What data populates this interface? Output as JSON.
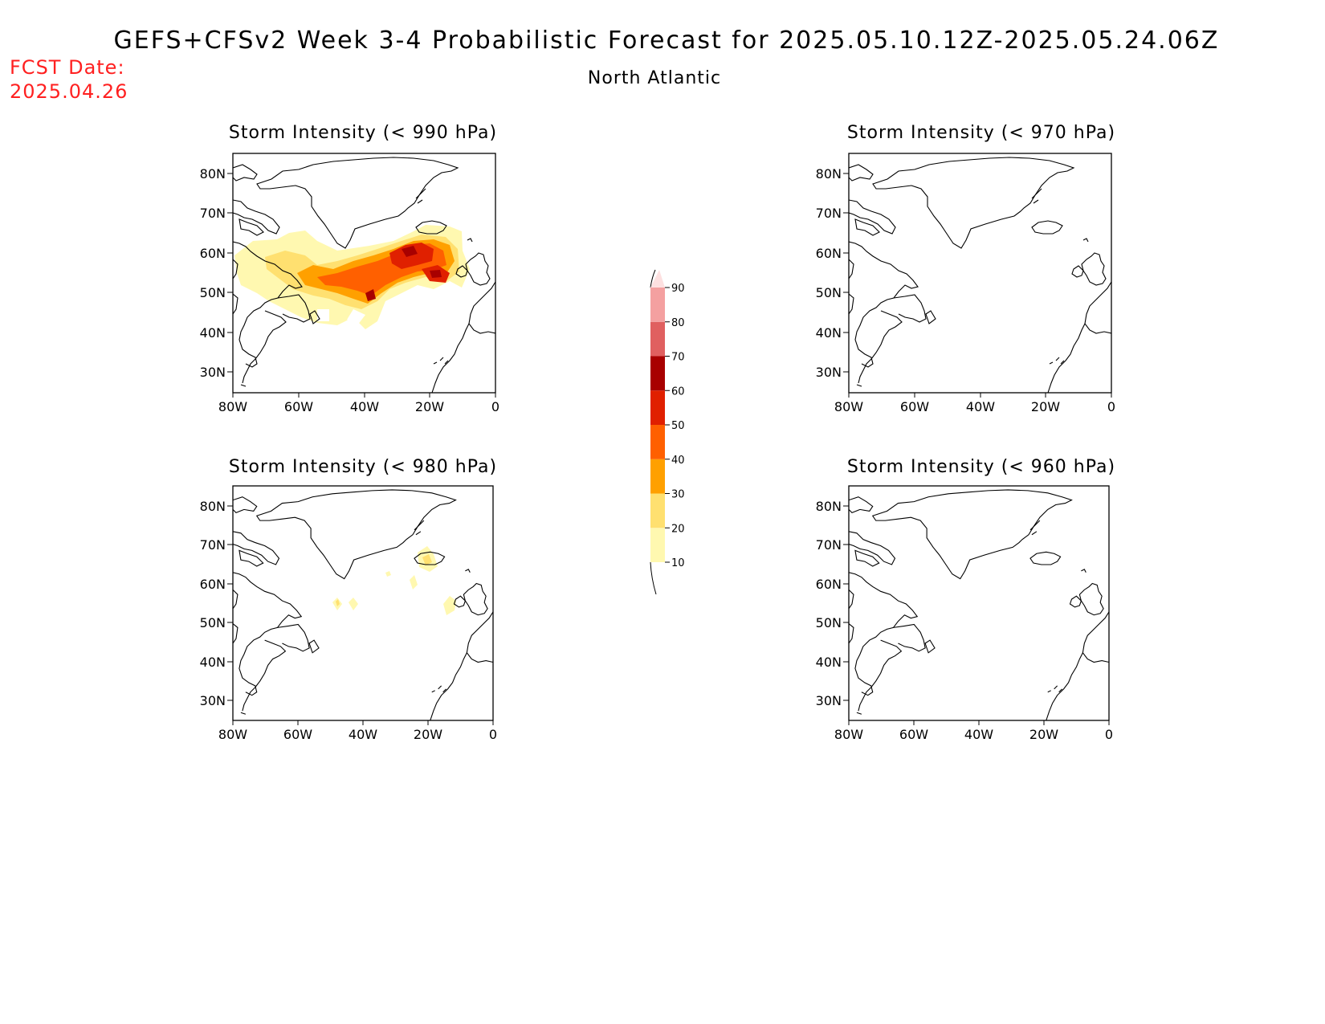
{
  "title": "GEFS+CFSv2 Week 3-4 Probabilistic Forecast for 2025.05.10.12Z-2025.05.24.06Z",
  "region": "North Atlantic",
  "fcst_date_label": "FCST Date:",
  "fcst_date": "2025.04.26",
  "colors": {
    "fcst_text": "#ff2020"
  },
  "panels": [
    {
      "title": "Storm Intensity (< 990 hPa)",
      "threshold": "990"
    },
    {
      "title": "Storm Intensity (< 970 hPa)",
      "threshold": "970"
    },
    {
      "title": "Storm Intensity (< 980 hPa)",
      "threshold": "980"
    },
    {
      "title": "Storm Intensity (< 960 hPa)",
      "threshold": "960"
    }
  ],
  "axes": {
    "lon_ticks": [
      "80W",
      "60W",
      "40W",
      "20W",
      "0"
    ],
    "lat_ticks": [
      "80N",
      "70N",
      "60N",
      "50N",
      "40N",
      "30N"
    ],
    "lon_range": [
      -80,
      0
    ],
    "lat_range": [
      25,
      85
    ]
  },
  "colorbar": {
    "labels": [
      "10",
      "20",
      "30",
      "40",
      "50",
      "60",
      "70",
      "80",
      "90"
    ],
    "colors": [
      "#fff8b0",
      "#ffe070",
      "#ffa000",
      "#ff6000",
      "#e02000",
      "#a80000",
      "#e06060",
      "#f4a0a0",
      "#fde0e0"
    ]
  }
}
